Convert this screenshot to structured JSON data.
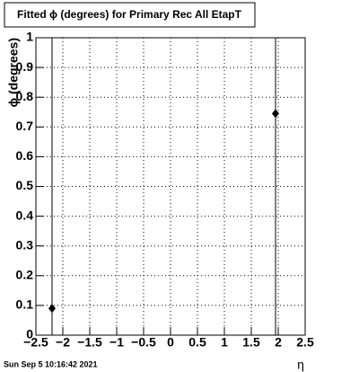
{
  "chart_data": {
    "type": "scatter",
    "title": "Fitted ϕ (degrees) for Primary Rec All EtapT",
    "x_label": "η",
    "y_label": "ϕ (degrees)",
    "footer": "Sun Sep  5 10:16:42 2021",
    "x": [
      -2.2,
      1.95
    ],
    "values": [
      0.09,
      0.745
    ],
    "errors": [
      1,
      1
    ],
    "color": "#000000",
    "xlim": [
      -2.5,
      2.5
    ],
    "xticks": [
      {
        "value": -2.5,
        "label": "−2.5"
      },
      {
        "value": -2,
        "label": "−2"
      },
      {
        "value": -1.5,
        "label": "−1.5"
      },
      {
        "value": -1,
        "label": "−1"
      },
      {
        "value": -0.5,
        "label": "−0.5"
      },
      0,
      0.5,
      1,
      1.5,
      2,
      2.5
    ],
    "ylim": [
      0,
      1
    ],
    "yticks": [
      0,
      0.1,
      0.2,
      0.3,
      0.4,
      0.5,
      0.6,
      0.7,
      0.8,
      0.9,
      1
    ],
    "grid": true
  }
}
